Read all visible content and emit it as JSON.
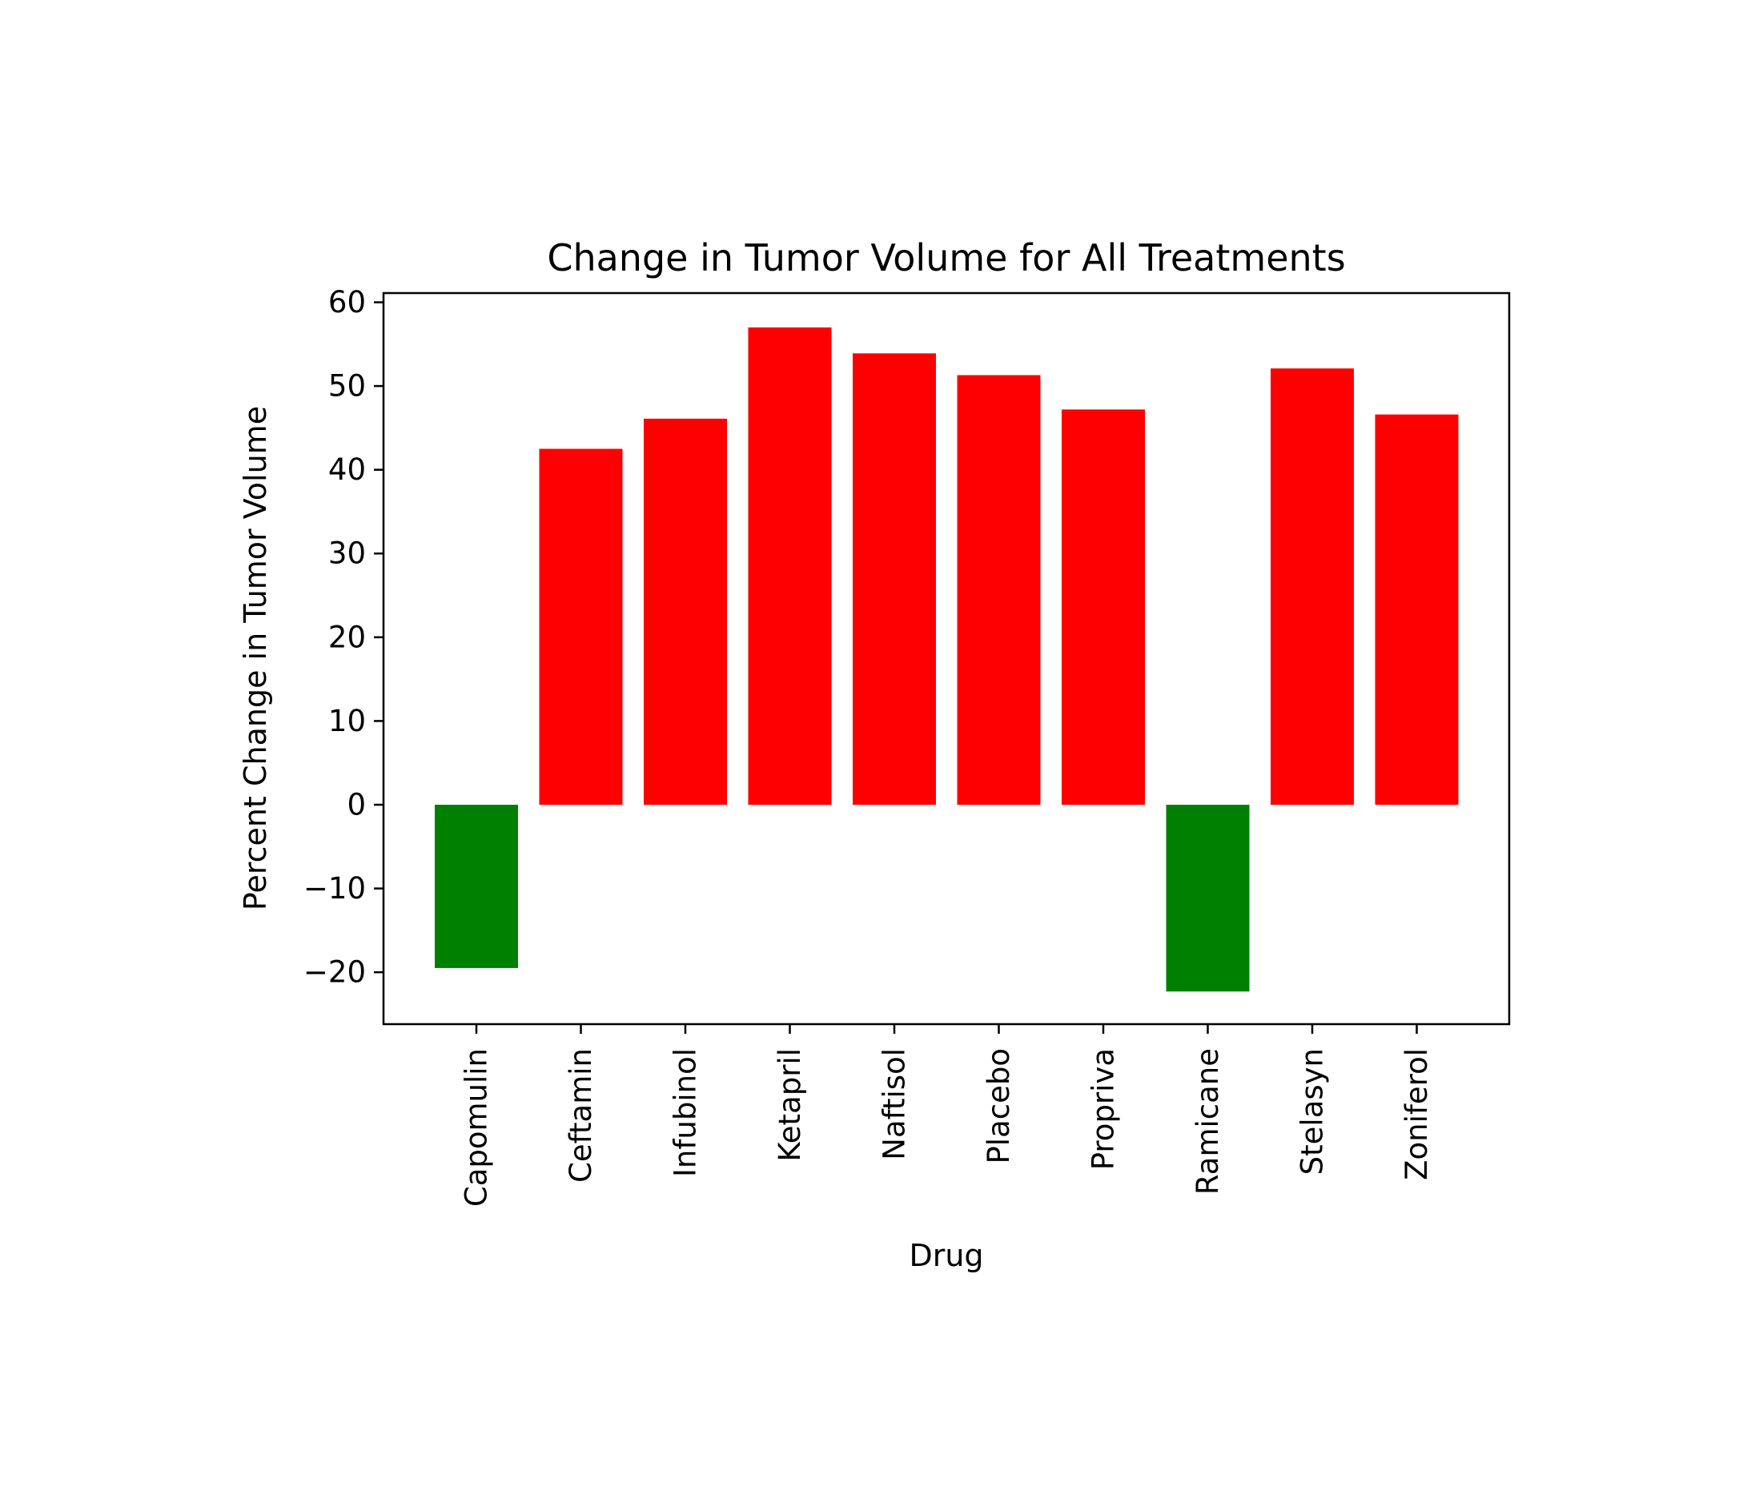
{
  "chart_data": {
    "type": "bar",
    "title": "Change in Tumor Volume for All Treatments",
    "xlabel": "Drug",
    "ylabel": "Percent Change in Tumor Volume",
    "categories": [
      "Capomulin",
      "Ceftamin",
      "Infubinol",
      "Ketapril",
      "Naftisol",
      "Placebo",
      "Propriva",
      "Ramicane",
      "Stelasyn",
      "Zoniferol"
    ],
    "values": [
      -19.5,
      42.5,
      46.1,
      57.0,
      53.9,
      51.3,
      47.2,
      -22.3,
      52.1,
      46.6
    ],
    "ylim": [
      -26.2,
      61.1
    ],
    "yticks": [
      -20,
      -10,
      0,
      10,
      20,
      30,
      40,
      50,
      60
    ],
    "ytick_labels": [
      "−20",
      "−10",
      "0",
      "10",
      "20",
      "30",
      "40",
      "50",
      "60"
    ],
    "grid": false,
    "colors": {
      "positive": "#ff0000",
      "negative": "#008000"
    }
  }
}
